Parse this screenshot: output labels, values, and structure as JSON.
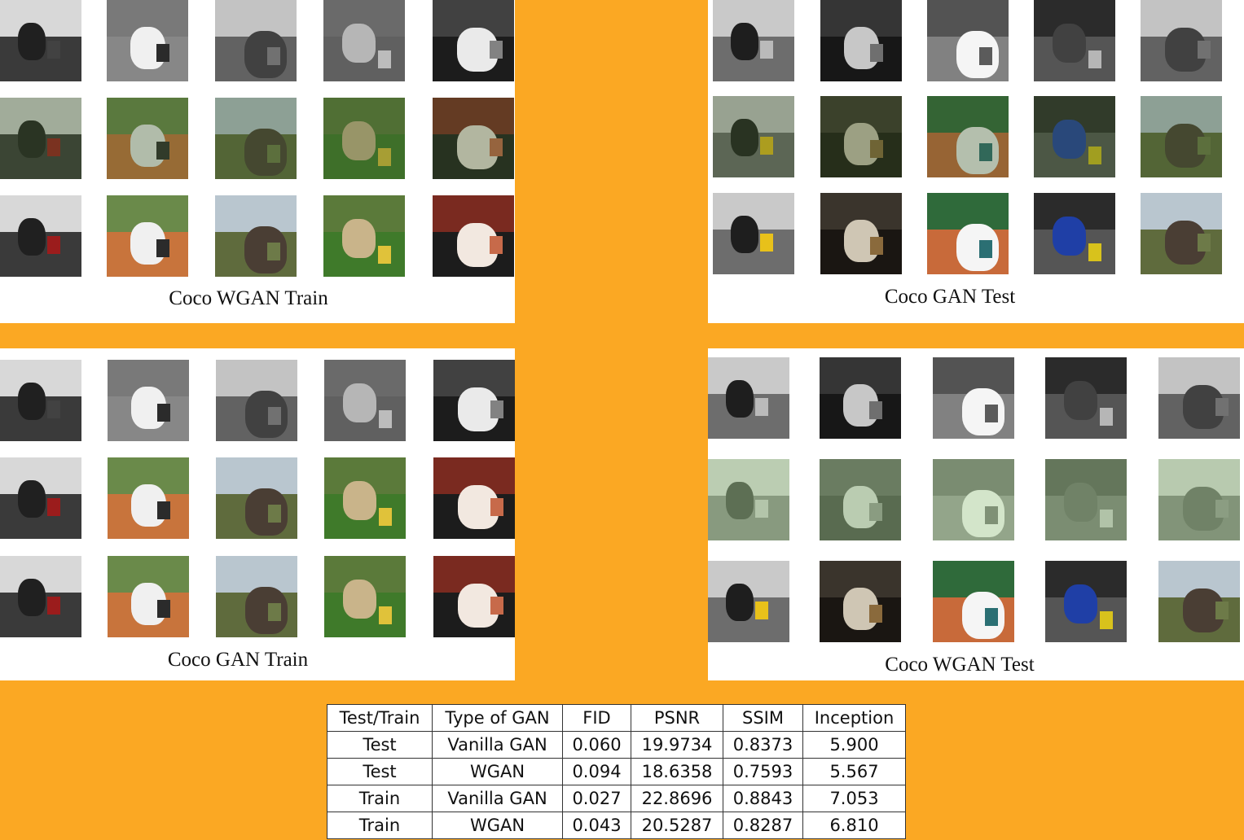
{
  "panels": {
    "top_left": {
      "caption": "Coco WGAN Train"
    },
    "top_right": {
      "caption": "Coco GAN Test"
    },
    "bottom_left": {
      "caption": "Coco GAN Train"
    },
    "bottom_right": {
      "caption": "Coco WGAN Test"
    }
  },
  "table": {
    "headers": [
      "Test/Train",
      "Type of GAN",
      "FID",
      "PSNR",
      "SSIM",
      "Inception"
    ],
    "rows": [
      [
        "Test",
        "Vanilla GAN",
        "0.060",
        "19.9734",
        "0.8373",
        "5.900"
      ],
      [
        "Test",
        "WGAN",
        "0.094",
        "18.6358",
        "0.7593",
        "5.567"
      ],
      [
        "Train",
        "Vanilla GAN",
        "0.027",
        "22.8696",
        "0.8843",
        "7.053"
      ],
      [
        "Train",
        "WGAN",
        "0.043",
        "20.5287",
        "0.8287",
        "6.810"
      ]
    ]
  },
  "colors": {
    "background": "#fba823",
    "panel": "#ffffff"
  }
}
